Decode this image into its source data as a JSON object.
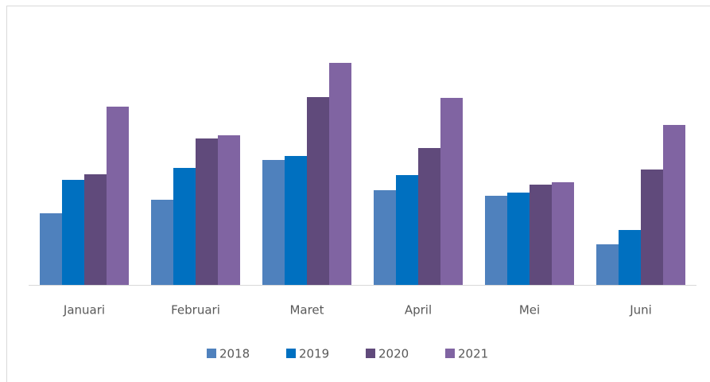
{
  "chart_data": {
    "type": "bar",
    "categories": [
      "Januari",
      "Februari",
      "Maret",
      "April",
      "Mei",
      "Juni"
    ],
    "series": [
      {
        "name": "2018",
        "color": "#4f81bd",
        "values": [
          90,
          107,
          157,
          119,
          112,
          51
        ]
      },
      {
        "name": "2019",
        "color": "#0070c0",
        "values": [
          132,
          147,
          162,
          138,
          116,
          69
        ]
      },
      {
        "name": "2020",
        "color": "#604a7b",
        "values": [
          139,
          184,
          236,
          172,
          126,
          145
        ]
      },
      {
        "name": "2021",
        "color": "#8064a2",
        "values": [
          224,
          188,
          279,
          235,
          129,
          201
        ]
      }
    ],
    "ylim": [
      0,
      300
    ],
    "legend": "bottom"
  }
}
